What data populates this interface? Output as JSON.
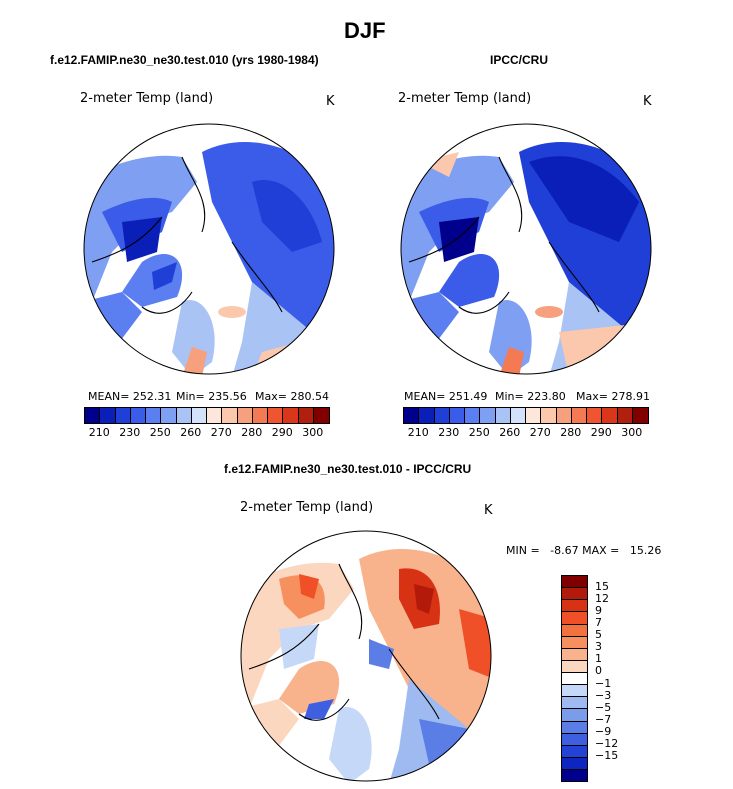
{
  "main_title": "DJF",
  "panel_left": {
    "header": "f.e12.FAMIP.ne30_ne30.test.010 (yrs 1980-1984)",
    "var_label": "2-meter Temp (land)",
    "units": "K",
    "mean": "MEAN= 252.31",
    "min": "Min= 235.56",
    "max": "Max= 280.54"
  },
  "panel_right": {
    "header": "IPCC/CRU",
    "var_label": "2-meter Temp (land)",
    "units": "K",
    "mean": "MEAN= 251.49",
    "min": "Min= 223.80",
    "max": "Max= 278.91"
  },
  "panel_diff": {
    "header": "f.e12.FAMIP.ne30_ne30.test.010 - IPCC/CRU",
    "var_label": "2-meter Temp (land)",
    "units": "K",
    "minmax": "MIN =   -8.67 MAX =   15.26"
  },
  "abs_colorbar": {
    "colors": [
      "#00008c",
      "#0a1fb8",
      "#1f3fd6",
      "#3a5ce8",
      "#5b7ef0",
      "#7f9ff2",
      "#a9c3f5",
      "#d2e2fa",
      "#fde7db",
      "#fbc7ad",
      "#f7a07d",
      "#f47a53",
      "#ee5530",
      "#d9361a",
      "#b1200e",
      "#800000"
    ],
    "labels": [
      "210",
      "230",
      "250",
      "260",
      "270",
      "280",
      "290",
      "300"
    ]
  },
  "diff_colorbar": {
    "colors": [
      "#800000",
      "#b31a0a",
      "#d83215",
      "#ef5028",
      "#f3703f",
      "#f6905e",
      "#f8b28c",
      "#fcd7c0",
      "#ffffff",
      "#c6d8f7",
      "#9fbaf0",
      "#7b9cea",
      "#5a7de6",
      "#3d5fe0",
      "#2342d6",
      "#0f25c0",
      "#00008c"
    ],
    "labels": [
      "15",
      "12",
      "9",
      "7",
      "5",
      "3",
      "1",
      "0",
      "−1",
      "−3",
      "−5",
      "−7",
      "−9",
      "−12",
      "−15"
    ]
  }
}
